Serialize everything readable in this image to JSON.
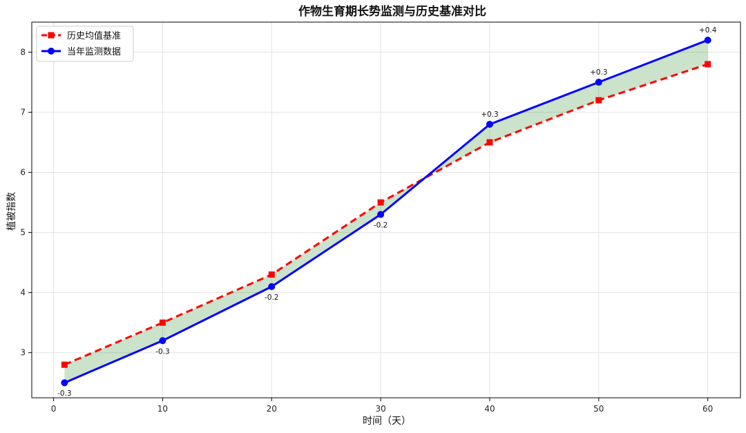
{
  "chart_data": {
    "type": "line",
    "title": "作物生育期长势监测与历史基准对比",
    "xlabel": "时间（天）",
    "ylabel": "植被指数",
    "xlim": [
      -2,
      63
    ],
    "ylim": [
      2.25,
      8.5
    ],
    "x_ticks": [
      0,
      10,
      20,
      30,
      40,
      50,
      60
    ],
    "y_ticks": [
      3,
      4,
      5,
      6,
      7,
      8
    ],
    "grid": true,
    "legend_position": "top-left",
    "x": [
      1,
      10,
      20,
      30,
      40,
      50,
      60
    ],
    "series": [
      {
        "name": "历史均值基准",
        "values": [
          2.8,
          3.5,
          4.3,
          5.5,
          6.5,
          7.2,
          7.8
        ],
        "color": "#ff0000",
        "line_style": "dashed",
        "marker": "square"
      },
      {
        "name": "当年监测数据",
        "values": [
          2.5,
          3.2,
          4.1,
          5.3,
          6.8,
          7.5,
          8.2
        ],
        "color": "#0000ff",
        "line_style": "solid",
        "marker": "circle"
      }
    ],
    "fill_between_color": "#2e8b2e",
    "annotations": [
      "-0.3",
      "-0.3",
      "-0.2",
      "-0.2",
      "+0.3",
      "+0.3",
      "+0.4"
    ]
  }
}
